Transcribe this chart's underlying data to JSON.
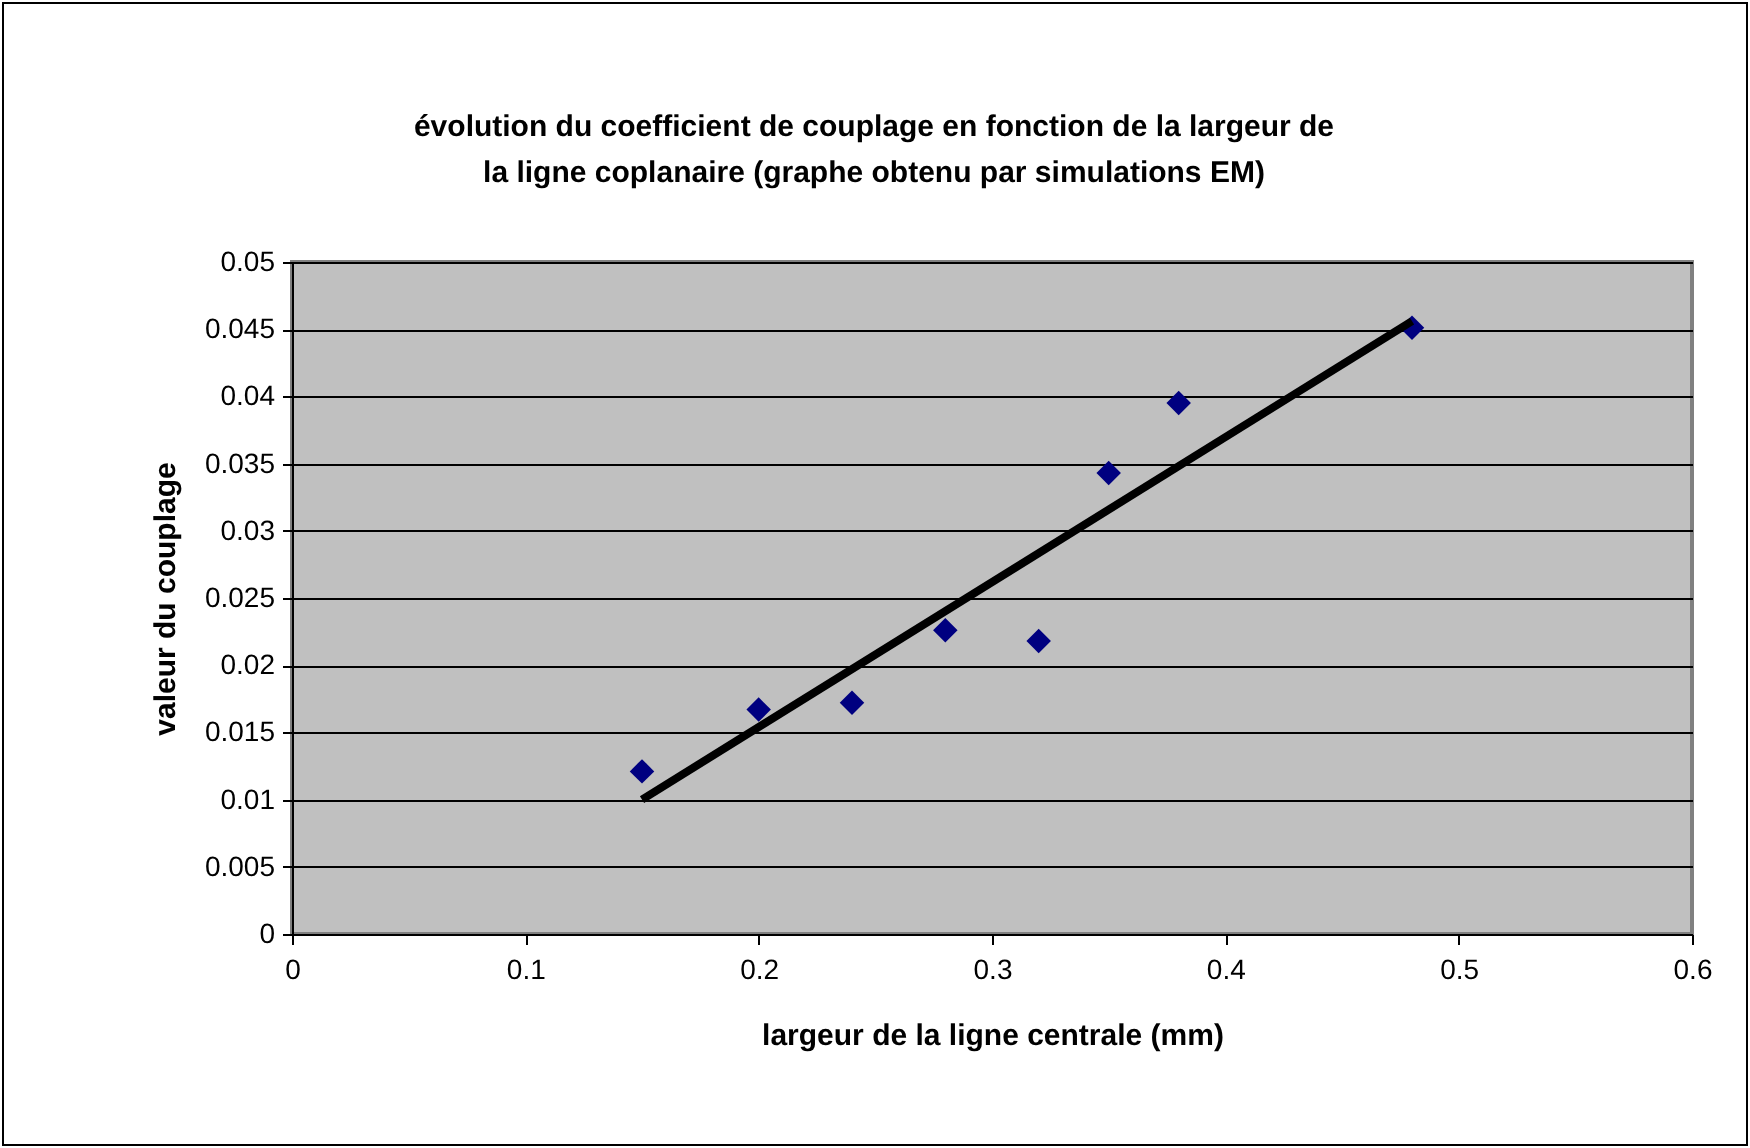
{
  "chart_data": {
    "type": "scatter",
    "title": "évolution du coefficient de couplage en fonction de la largeur de\nla ligne coplanaire (graphe obtenu par simulations EM)",
    "xlabel": "largeur de la ligne centrale (mm)",
    "ylabel": "valeur du couplage",
    "xlim": [
      0,
      0.6
    ],
    "xticks": [
      0,
      0.1,
      0.2,
      0.3,
      0.4,
      0.5,
      0.6
    ],
    "ylim": [
      0,
      0.05
    ],
    "yticks": [
      0,
      0.005,
      0.01,
      0.015,
      0.02,
      0.025,
      0.03,
      0.035,
      0.04,
      0.045,
      0.05
    ],
    "grid": "y",
    "series": [
      {
        "color": "#000080",
        "marker": "diamond",
        "x": [
          0.15,
          0.2,
          0.24,
          0.28,
          0.32,
          0.35,
          0.38,
          0.48
        ],
        "values": [
          0.0121,
          0.0167,
          0.0172,
          0.0226,
          0.0218,
          0.0343,
          0.0395,
          0.0451
        ]
      },
      {
        "type": "line",
        "color": "#000000",
        "line_style": "solid",
        "x": [
          0.15,
          0.48
        ],
        "values": [
          0.01,
          0.0456
        ]
      }
    ]
  }
}
